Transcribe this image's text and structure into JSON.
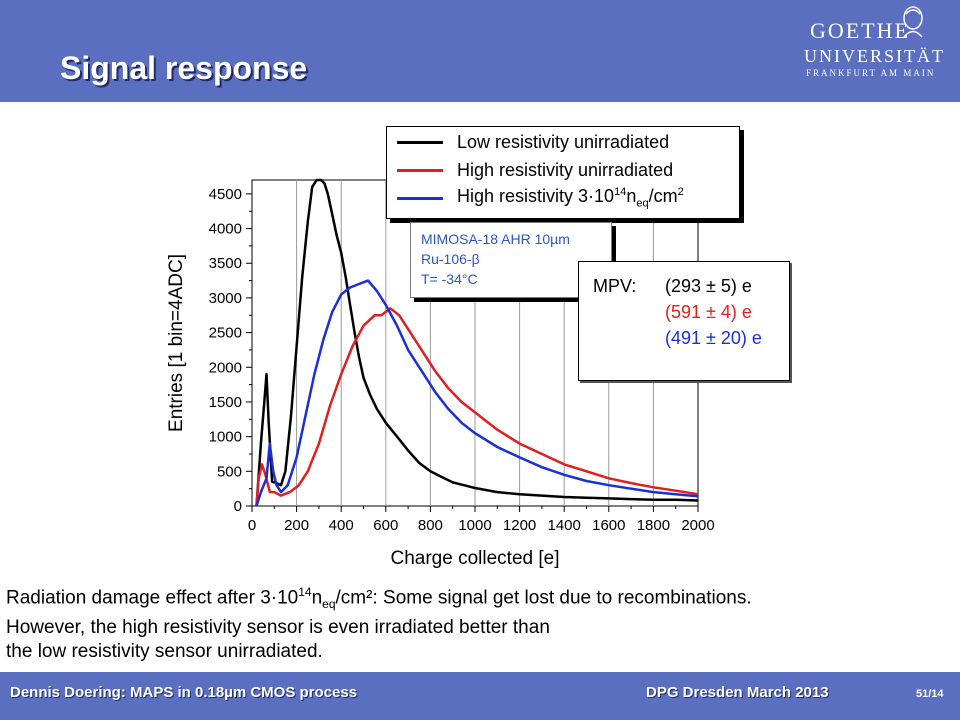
{
  "header": {
    "title": "Signal response",
    "logo": {
      "line1": "GOETHE",
      "line2": "UNIVERSITÄT",
      "line3": "FRANKFURT AM MAIN"
    }
  },
  "colors": {
    "header_bg": "#5b6fc0",
    "series_low": "#000000",
    "series_high": "#e02020",
    "series_irr": "#1a2fd6",
    "info_text": "#2d55c9"
  },
  "chart_data": {
    "type": "line",
    "xlabel": "Charge collected [e]",
    "ylabel": "Entries [1 bin=4ADC]",
    "xlim": [
      0,
      2000
    ],
    "ylim": [
      0,
      4700
    ],
    "xticks": [
      0,
      200,
      400,
      600,
      800,
      1000,
      1200,
      1400,
      1600,
      1800,
      2000
    ],
    "yticks": [
      0,
      500,
      1000,
      1500,
      2000,
      2500,
      3000,
      3500,
      4000,
      4500
    ],
    "grid": "vertical",
    "legend_position": "top-right",
    "series": [
      {
        "name": "Low resistivity unirradiated",
        "color": "#000000",
        "points": [
          [
            20,
            0
          ],
          [
            40,
            900
          ],
          [
            55,
            1500
          ],
          [
            65,
            1900
          ],
          [
            75,
            1200
          ],
          [
            90,
            350
          ],
          [
            110,
            330
          ],
          [
            130,
            300
          ],
          [
            150,
            500
          ],
          [
            175,
            1300
          ],
          [
            200,
            2300
          ],
          [
            225,
            3300
          ],
          [
            250,
            4100
          ],
          [
            270,
            4600
          ],
          [
            290,
            4700
          ],
          [
            310,
            4700
          ],
          [
            325,
            4650
          ],
          [
            340,
            4500
          ],
          [
            360,
            4200
          ],
          [
            380,
            3900
          ],
          [
            400,
            3650
          ],
          [
            420,
            3300
          ],
          [
            440,
            2900
          ],
          [
            460,
            2500
          ],
          [
            480,
            2150
          ],
          [
            500,
            1850
          ],
          [
            530,
            1600
          ],
          [
            560,
            1400
          ],
          [
            600,
            1200
          ],
          [
            650,
            1000
          ],
          [
            700,
            800
          ],
          [
            750,
            620
          ],
          [
            800,
            500
          ],
          [
            850,
            420
          ],
          [
            900,
            340
          ],
          [
            950,
            300
          ],
          [
            1000,
            260
          ],
          [
            1100,
            200
          ],
          [
            1200,
            170
          ],
          [
            1300,
            150
          ],
          [
            1400,
            130
          ],
          [
            1500,
            120
          ],
          [
            1600,
            110
          ],
          [
            1700,
            100
          ],
          [
            1800,
            90
          ],
          [
            1900,
            90
          ],
          [
            2000,
            80
          ]
        ]
      },
      {
        "name": "High resistivity unirradiated",
        "color": "#e02020",
        "points": [
          [
            20,
            0
          ],
          [
            30,
            400
          ],
          [
            45,
            600
          ],
          [
            60,
            450
          ],
          [
            80,
            200
          ],
          [
            100,
            200
          ],
          [
            130,
            150
          ],
          [
            170,
            200
          ],
          [
            210,
            300
          ],
          [
            250,
            500
          ],
          [
            300,
            900
          ],
          [
            350,
            1450
          ],
          [
            400,
            1900
          ],
          [
            450,
            2300
          ],
          [
            500,
            2600
          ],
          [
            550,
            2750
          ],
          [
            580,
            2750
          ],
          [
            620,
            2850
          ],
          [
            660,
            2750
          ],
          [
            700,
            2550
          ],
          [
            760,
            2250
          ],
          [
            820,
            1950
          ],
          [
            880,
            1700
          ],
          [
            940,
            1500
          ],
          [
            1000,
            1350
          ],
          [
            1100,
            1100
          ],
          [
            1200,
            900
          ],
          [
            1300,
            750
          ],
          [
            1400,
            600
          ],
          [
            1500,
            500
          ],
          [
            1600,
            400
          ],
          [
            1700,
            330
          ],
          [
            1800,
            270
          ],
          [
            1900,
            220
          ],
          [
            2000,
            170
          ]
        ]
      },
      {
        "name": "High resistivity 3·10¹⁴ neq/cm²",
        "color": "#1a2fd6",
        "points": [
          [
            20,
            0
          ],
          [
            40,
            200
          ],
          [
            65,
            400
          ],
          [
            80,
            900
          ],
          [
            95,
            500
          ],
          [
            110,
            300
          ],
          [
            130,
            200
          ],
          [
            160,
            300
          ],
          [
            200,
            700
          ],
          [
            240,
            1300
          ],
          [
            280,
            1900
          ],
          [
            320,
            2400
          ],
          [
            360,
            2800
          ],
          [
            400,
            3050
          ],
          [
            440,
            3150
          ],
          [
            480,
            3200
          ],
          [
            520,
            3250
          ],
          [
            560,
            3100
          ],
          [
            600,
            2900
          ],
          [
            650,
            2600
          ],
          [
            700,
            2250
          ],
          [
            760,
            1950
          ],
          [
            820,
            1650
          ],
          [
            880,
            1400
          ],
          [
            940,
            1200
          ],
          [
            1000,
            1050
          ],
          [
            1100,
            850
          ],
          [
            1200,
            700
          ],
          [
            1300,
            560
          ],
          [
            1400,
            450
          ],
          [
            1500,
            360
          ],
          [
            1600,
            300
          ],
          [
            1700,
            250
          ],
          [
            1800,
            200
          ],
          [
            1900,
            170
          ],
          [
            2000,
            140
          ]
        ]
      }
    ]
  },
  "legend": {
    "items": [
      {
        "label": "Low resistivity unirradiated"
      },
      {
        "label": "High resistivity unirradiated"
      },
      {
        "pre": "High resistivity 3·10",
        "sup": "14",
        "mid": "n",
        "sub": "eq",
        "post": "/cm",
        "sup2": "2"
      }
    ]
  },
  "info": {
    "line1": "MIMOSA-18 AHR 10µm",
    "line2": "Ru-106-β",
    "line3": "T= -34°C"
  },
  "mpv": {
    "label": "MPV:",
    "values": [
      "(293 ± 5) e",
      "(591 ± 4) e",
      "(491 ± 20) e"
    ]
  },
  "caption": {
    "line1_pre": "Radiation damage effect after 3·10",
    "line1_sup": "14",
    "line1_mid": "n",
    "line1_sub": "eq",
    "line1_post": "/cm²: Some signal get lost due to recombinations.",
    "line2": "However, the high resistivity sensor is even irradiated better than",
    "line3": "the low resistivity sensor unirradiated."
  },
  "footer": {
    "left": "Dennis Doering: MAPS in 0.18µm CMOS process",
    "right": "DPG Dresden March 2013",
    "page": "51/14"
  }
}
